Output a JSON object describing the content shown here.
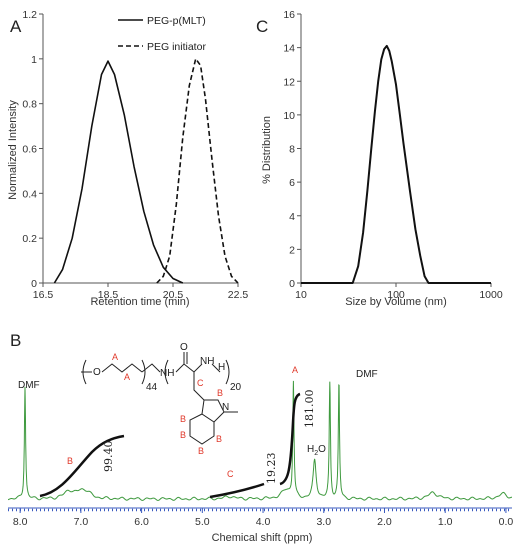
{
  "chart_data": [
    {
      "panel": "A",
      "type": "line",
      "xlabel": "Retention time (min)",
      "ylabel": "Normalized Intensity",
      "xlim": [
        16.5,
        22.5
      ],
      "ylim": [
        0,
        1.2
      ],
      "xticks": [
        "16.5",
        "18.5",
        "20.5",
        "22.5"
      ],
      "yticks": [
        "0",
        "0.2",
        "0.4",
        "0.6",
        "0.8",
        "1",
        "1.2"
      ],
      "legend_position": "top-right",
      "series": [
        {
          "name": "PEG-p(MLT)",
          "style": "solid",
          "x": [
            16.85,
            17.1,
            17.4,
            17.7,
            18.0,
            18.3,
            18.5,
            18.7,
            19.0,
            19.3,
            19.6,
            19.9,
            20.2,
            20.5,
            20.8
          ],
          "y": [
            0.0,
            0.06,
            0.2,
            0.42,
            0.7,
            0.93,
            0.99,
            0.93,
            0.75,
            0.52,
            0.32,
            0.17,
            0.07,
            0.02,
            0.0
          ]
        },
        {
          "name": "PEG initiator",
          "style": "dashed",
          "x": [
            20.0,
            20.2,
            20.4,
            20.6,
            20.8,
            21.0,
            21.2,
            21.35,
            21.5,
            21.7,
            21.9,
            22.1,
            22.3,
            22.5
          ],
          "y": [
            0.0,
            0.03,
            0.12,
            0.35,
            0.65,
            0.88,
            1.0,
            0.97,
            0.82,
            0.55,
            0.3,
            0.12,
            0.03,
            0.0
          ]
        }
      ]
    },
    {
      "panel": "C",
      "type": "line",
      "xlabel": "Size by Volume (nm)",
      "ylabel": "% Distribution",
      "xscale": "log",
      "xlim": [
        10,
        1000
      ],
      "ylim": [
        0,
        16
      ],
      "xticks": [
        "10",
        "100",
        "1000"
      ],
      "yticks": [
        "0",
        "2",
        "4",
        "6",
        "8",
        "10",
        "12",
        "14",
        "16"
      ],
      "series": [
        {
          "x": [
            10,
            35,
            40,
            45,
            50,
            55,
            60,
            65,
            70,
            75,
            80,
            85,
            90,
            100,
            110,
            120,
            140,
            160,
            180,
            200,
            220,
            1000
          ],
          "y": [
            0,
            0,
            1.0,
            3.0,
            5.5,
            8.0,
            10.2,
            12.0,
            13.3,
            13.9,
            14.1,
            13.8,
            13.2,
            11.8,
            10.0,
            8.3,
            5.5,
            3.2,
            1.6,
            0.4,
            0,
            0
          ]
        }
      ]
    },
    {
      "panel": "B",
      "type": "line",
      "xlabel": "Chemical shift (ppm)",
      "xlim": [
        8.2,
        -0.1
      ],
      "xticks": [
        "8.0",
        "7.0",
        "6.0",
        "5.0",
        "4.0",
        "3.0",
        "2.0",
        "1.0",
        "0.0"
      ],
      "peaks": [
        {
          "ppm": 7.92,
          "height": 0.88,
          "label": "DMF"
        },
        {
          "ppm": 7.2,
          "height": 0.06
        },
        {
          "ppm": 7.0,
          "height": 0.05
        },
        {
          "ppm": 6.9,
          "height": 0.04
        },
        {
          "ppm": 4.55,
          "height": 0.02
        },
        {
          "ppm": 3.62,
          "height": 0.07
        },
        {
          "ppm": 3.5,
          "height": 0.9,
          "label": "A"
        },
        {
          "ppm": 3.15,
          "height": 0.3,
          "label": "H2O"
        },
        {
          "ppm": 2.9,
          "height": 0.9
        },
        {
          "ppm": 2.75,
          "height": 0.9,
          "label": "DMF"
        },
        {
          "ppm": 1.2,
          "height": 0.05
        },
        {
          "ppm": 0.05,
          "height": 0.04
        }
      ],
      "integrals": [
        {
          "value": "99.40",
          "label": "B"
        },
        {
          "value": "19.23",
          "label": "C"
        },
        {
          "value": "181.00",
          "label": "A"
        }
      ],
      "structure": {
        "subscripts": [
          "44",
          "20"
        ],
        "atom_labels": [
          "O",
          "NH",
          "O",
          "NH",
          "H",
          "N"
        ],
        "red_labels": [
          "A",
          "A",
          "C",
          "B",
          "B",
          "B",
          "B",
          "B"
        ]
      }
    }
  ],
  "labels": {
    "panel_a": "A",
    "panel_b": "B",
    "panel_c": "C",
    "legend_solid": "PEG-p(MLT)",
    "legend_dashed": "PEG initiator",
    "peak_dmf_left": "DMF",
    "peak_dmf_right": "DMF",
    "peak_a": "A",
    "peak_water": "H",
    "peak_water_sub": "2",
    "peak_water_tail": "O",
    "region_b": "B",
    "region_c": "C"
  },
  "colors": {
    "nmr_trace": "#3f9a3f",
    "annotation_red": "#e0392b",
    "curve": "#111111",
    "axis_tick_blue": "#3b5bbf"
  }
}
